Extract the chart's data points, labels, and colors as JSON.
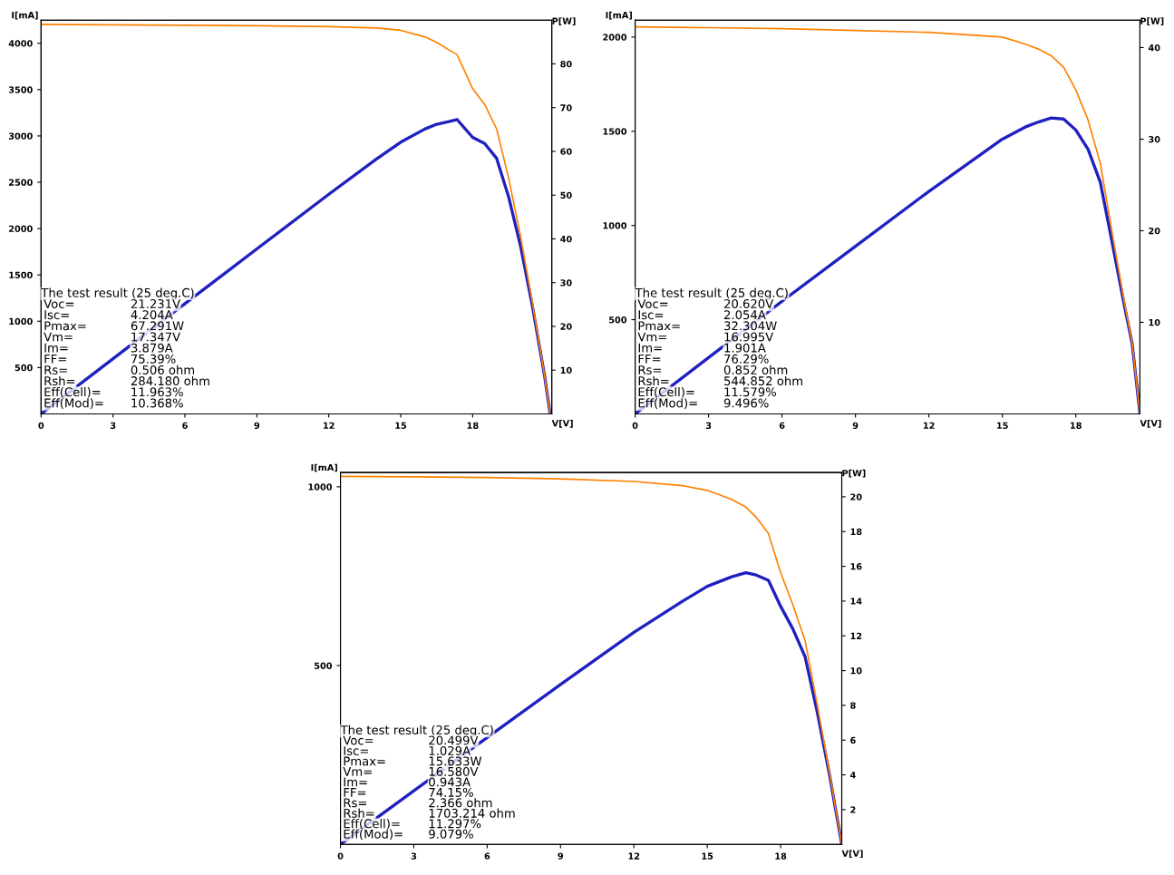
{
  "chart_data": [
    {
      "type": "line",
      "xlabel": "V[V]",
      "ylabel": "I[mA]",
      "y2label": "P[W]",
      "xlim": [
        0,
        21.3
      ],
      "xticks": [
        0,
        3,
        6,
        9,
        12,
        15,
        18
      ],
      "ylim": [
        0,
        4250
      ],
      "yticks": [
        500,
        1000,
        1500,
        2000,
        2500,
        3000,
        3500,
        4000
      ],
      "y2lim": [
        0,
        90
      ],
      "y2ticks": [
        10,
        20,
        30,
        40,
        50,
        60,
        70,
        80
      ],
      "grid": false,
      "legend": false,
      "series": [
        {
          "color": "#ff8000",
          "x": [
            0,
            3,
            6,
            9,
            12,
            14,
            15,
            16,
            16.5,
            17,
            17.347,
            18,
            18.5,
            19,
            19.5,
            20,
            20.5,
            21,
            21.231
          ],
          "values": [
            4204,
            4200,
            4195,
            4190,
            4180,
            4165,
            4140,
            4070,
            4010,
            3930,
            3879,
            3510,
            3340,
            3075,
            2545,
            1915,
            1190,
            415,
            0
          ]
        },
        {
          "color": "#2020c0",
          "axis": "y2",
          "x": [
            0,
            3,
            6,
            9,
            12,
            14,
            15,
            16,
            16.5,
            17,
            17.347,
            18,
            18.5,
            19,
            19.5,
            20,
            20.5,
            21,
            21.231
          ],
          "values": [
            0,
            12.6,
            25.2,
            37.7,
            50.2,
            58.3,
            62.1,
            65.1,
            66.2,
            66.8,
            67.291,
            63.2,
            61.8,
            58.4,
            49.6,
            38.3,
            24.4,
            8.7,
            0
          ]
        }
      ],
      "annotations": [
        "The test result (25 deg.C)",
        "Voc=",
        "21.231V",
        "Isc=",
        "4.204A",
        "Pmax=",
        "67.291W",
        "Vm=",
        "17.347V",
        "Im=",
        "3.879A",
        "FF=",
        "75.39%",
        "Rs=",
        "0.506 ohm",
        "Rsh=",
        "284.180 ohm",
        "Eff(Cell)=",
        "11.963%",
        "Eff(Mod)=",
        "10.368%"
      ]
    },
    {
      "type": "line",
      "xlabel": "V[V]",
      "ylabel": "I[mA]",
      "y2label": "P[W]",
      "xlim": [
        0,
        20.62
      ],
      "xticks": [
        0,
        3,
        6,
        9,
        12,
        15,
        18
      ],
      "ylim": [
        0,
        2090
      ],
      "yticks": [
        500,
        1000,
        1500,
        2000
      ],
      "y2lim": [
        0,
        43
      ],
      "y2ticks": [
        10,
        20,
        30,
        40
      ],
      "grid": false,
      "legend": false,
      "series": [
        {
          "color": "#ff8000",
          "x": [
            0,
            3,
            6,
            9,
            12,
            15,
            16,
            16.5,
            16.995,
            17.5,
            18,
            18.5,
            19,
            19.5,
            20,
            20.3,
            20.62
          ],
          "values": [
            2054,
            2050,
            2045,
            2035,
            2025,
            2000,
            1960,
            1935,
            1901,
            1840,
            1720,
            1560,
            1330,
            950,
            580,
            380,
            0
          ]
        },
        {
          "color": "#2020c0",
          "axis": "y2",
          "x": [
            0,
            3,
            6,
            9,
            12,
            15,
            16,
            16.5,
            16.995,
            17.5,
            18,
            18.5,
            19,
            19.5,
            20,
            20.3,
            20.62
          ],
          "values": [
            0,
            6.15,
            12.3,
            18.3,
            24.3,
            30.0,
            31.4,
            31.9,
            32.304,
            32.2,
            31.0,
            28.9,
            25.3,
            18.5,
            11.6,
            7.7,
            0
          ]
        }
      ],
      "annotations": [
        "The test result (25 deg.C)",
        "Voc=",
        "20.620V",
        "Isc=",
        "2.054A",
        "Pmax=",
        "32.304W",
        "Vm=",
        "16.995V",
        "Im=",
        "1.901A",
        "FF=",
        "76.29%",
        "Rs=",
        "0.852 ohm",
        "Rsh=",
        "544.852 ohm",
        "Eff(Cell)=",
        "11.579%",
        "Eff(Mod)=",
        "9.496%"
      ]
    },
    {
      "type": "line",
      "xlabel": "V[V]",
      "ylabel": "I[mA]",
      "y2label": "P[W]",
      "xlim": [
        0,
        20.5
      ],
      "xticks": [
        0,
        3,
        6,
        9,
        12,
        15,
        18
      ],
      "ylim": [
        0,
        1040
      ],
      "yticks": [
        500,
        1000
      ],
      "y2lim": [
        0,
        21.4
      ],
      "y2ticks": [
        2,
        4,
        6,
        8,
        10,
        12,
        14,
        16,
        18,
        20
      ],
      "grid": false,
      "legend": false,
      "series": [
        {
          "color": "#ff8000",
          "x": [
            0,
            3,
            6,
            9,
            12,
            14,
            15,
            16,
            16.58,
            17,
            17.5,
            18,
            18.5,
            19,
            19.5,
            20,
            20.5
          ],
          "values": [
            1029,
            1028,
            1026,
            1022,
            1015,
            1003,
            990,
            965,
            943,
            915,
            870,
            760,
            670,
            570,
            390,
            200,
            0
          ]
        },
        {
          "color": "#2020c0",
          "axis": "y2",
          "x": [
            0,
            3,
            6,
            9,
            12,
            14,
            15,
            16,
            16.58,
            17,
            17.5,
            18,
            18.5,
            19,
            19.5,
            20,
            20.5
          ],
          "values": [
            0,
            3.08,
            6.15,
            9.2,
            12.2,
            14.0,
            14.85,
            15.4,
            15.633,
            15.5,
            15.2,
            13.7,
            12.4,
            10.8,
            7.6,
            4.0,
            0
          ]
        }
      ],
      "annotations": [
        "The test result (25 deg.C)",
        "Voc=",
        "20.499V",
        "Isc=",
        "1.029A",
        "Pmax=",
        "15.633W",
        "Vm=",
        "16.580V",
        "Im=",
        "0.943A",
        "FF=",
        "74.15%",
        "Rs=",
        "2.366 ohm",
        "Rsh=",
        "1703.214 ohm",
        "Eff(Cell)=",
        "11.297%",
        "Eff(Mod)=",
        "9.079%"
      ]
    }
  ]
}
